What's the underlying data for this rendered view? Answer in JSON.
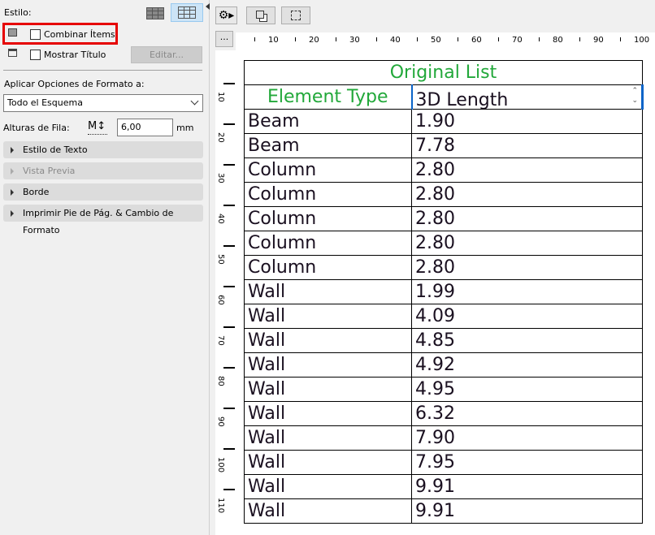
{
  "panel": {
    "style_label": "Estilo:",
    "merge_items_label": "Combinar Ítems",
    "merge_items_checked": false,
    "show_title_label": "Mostrar Título",
    "show_title_checked": false,
    "edit_button": "Editar...",
    "apply_label": "Aplicar Opciones de Formato a:",
    "apply_select": "Todo el Esquema",
    "row_height_label": "Alturas de Fila:",
    "row_height_value": "6,00",
    "row_height_unit": "mm",
    "sections": [
      "Estilo de Texto",
      "Vista Previa",
      "Borde",
      "Imprimir Pie de Pág. & Cambio de Formato"
    ],
    "highlight_color": "#e60000"
  },
  "toolbar": {
    "more_button": "..."
  },
  "ruler": {
    "h_labels": [
      "10",
      "20",
      "30",
      "40",
      "50",
      "60",
      "70",
      "80",
      "90",
      "100"
    ],
    "v_labels": [
      "10",
      "20",
      "30",
      "40",
      "50",
      "60",
      "70",
      "80",
      "90",
      "100",
      "110"
    ]
  },
  "table": {
    "title": "Original List",
    "headers": [
      "Element Type",
      "3D Length"
    ],
    "rows": [
      [
        "Beam",
        "1.90"
      ],
      [
        "Beam",
        "7.78"
      ],
      [
        "Column",
        "2.80"
      ],
      [
        "Column",
        "2.80"
      ],
      [
        "Column",
        "2.80"
      ],
      [
        "Column",
        "2.80"
      ],
      [
        "Column",
        "2.80"
      ],
      [
        "Wall",
        "1.99"
      ],
      [
        "Wall",
        "4.09"
      ],
      [
        "Wall",
        "4.85"
      ],
      [
        "Wall",
        "4.92"
      ],
      [
        "Wall",
        "4.95"
      ],
      [
        "Wall",
        "6.32"
      ],
      [
        "Wall",
        "7.90"
      ],
      [
        "Wall",
        "7.95"
      ],
      [
        "Wall",
        "9.91"
      ],
      [
        "Wall",
        "9.91"
      ]
    ],
    "header_color": "#22a83a"
  }
}
